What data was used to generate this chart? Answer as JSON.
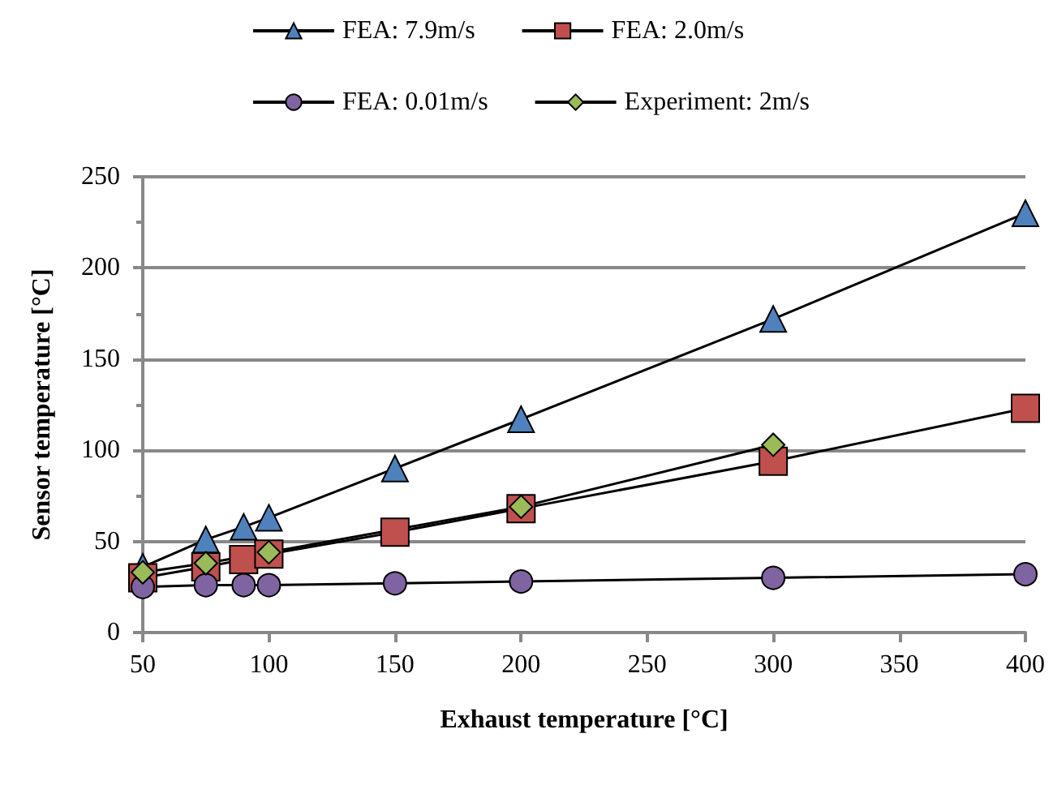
{
  "chart_data": {
    "type": "line",
    "xlabel": "Exhaust temperature [°C]",
    "ylabel": "Sensor temperature [°C]",
    "xlim": [
      50,
      400
    ],
    "xticks": [
      50,
      100,
      150,
      200,
      250,
      300,
      350,
      400
    ],
    "ylim": [
      0,
      250
    ],
    "yticks": [
      0,
      50,
      100,
      150,
      200,
      250
    ],
    "grid": "y",
    "legend": "top",
    "series": [
      {
        "name": "FEA: 7.9m/s",
        "color": "#4f81bd",
        "marker": "triangle",
        "x": [
          50,
          75,
          90,
          100,
          150,
          200,
          300,
          400
        ],
        "values": [
          36,
          51,
          58,
          63,
          90,
          117,
          172,
          230
        ]
      },
      {
        "name": "FEA: 2.0m/s",
        "color": "#c0504d",
        "marker": "square",
        "x": [
          50,
          75,
          90,
          100,
          150,
          200,
          300,
          400
        ],
        "values": [
          30,
          36,
          40,
          43,
          55,
          68,
          94,
          123
        ]
      },
      {
        "name": "FEA: 0.01m/s",
        "color": "#8064a2",
        "marker": "circle",
        "x": [
          50,
          75,
          90,
          100,
          150,
          200,
          300,
          400
        ],
        "values": [
          25,
          26,
          26,
          26,
          27,
          28,
          30,
          32
        ]
      },
      {
        "name": "Experiment: 2m/s",
        "color": "#9bbb59",
        "marker": "diamond",
        "x": [
          50,
          75,
          100,
          200,
          300
        ],
        "values": [
          33,
          38,
          44,
          69,
          103
        ]
      }
    ]
  }
}
